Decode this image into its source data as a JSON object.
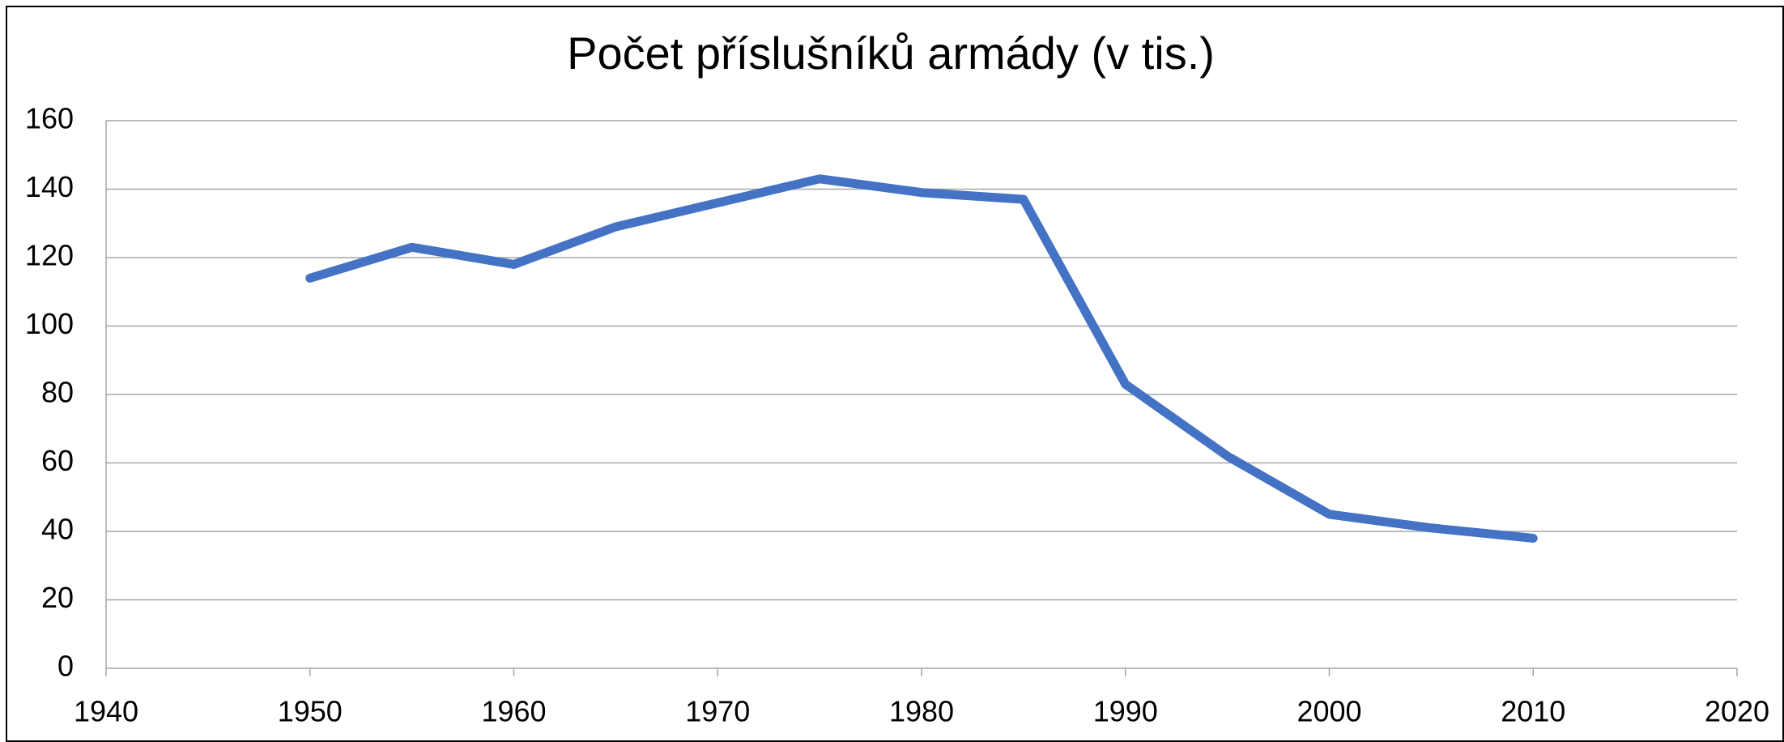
{
  "chart_data": {
    "type": "line",
    "title": "Počet příslušníků armády (v tis.)",
    "x": [
      1950,
      1955,
      1960,
      1965,
      1970,
      1975,
      1980,
      1985,
      1990,
      1995,
      2000,
      2005,
      2010
    ],
    "series": [
      {
        "color": "#4472c4",
        "values": [
          114,
          123,
          118,
          129,
          136,
          143,
          139,
          137,
          83,
          62,
          45,
          41,
          38
        ]
      }
    ],
    "xlim": [
      1940,
      2020
    ],
    "xticks": [
      1940,
      1950,
      1960,
      1970,
      1980,
      1990,
      2000,
      2010,
      2020
    ],
    "ylim": [
      0,
      160
    ],
    "yticks": [
      0,
      20,
      40,
      60,
      80,
      100,
      120,
      140,
      160
    ],
    "grid": true
  }
}
